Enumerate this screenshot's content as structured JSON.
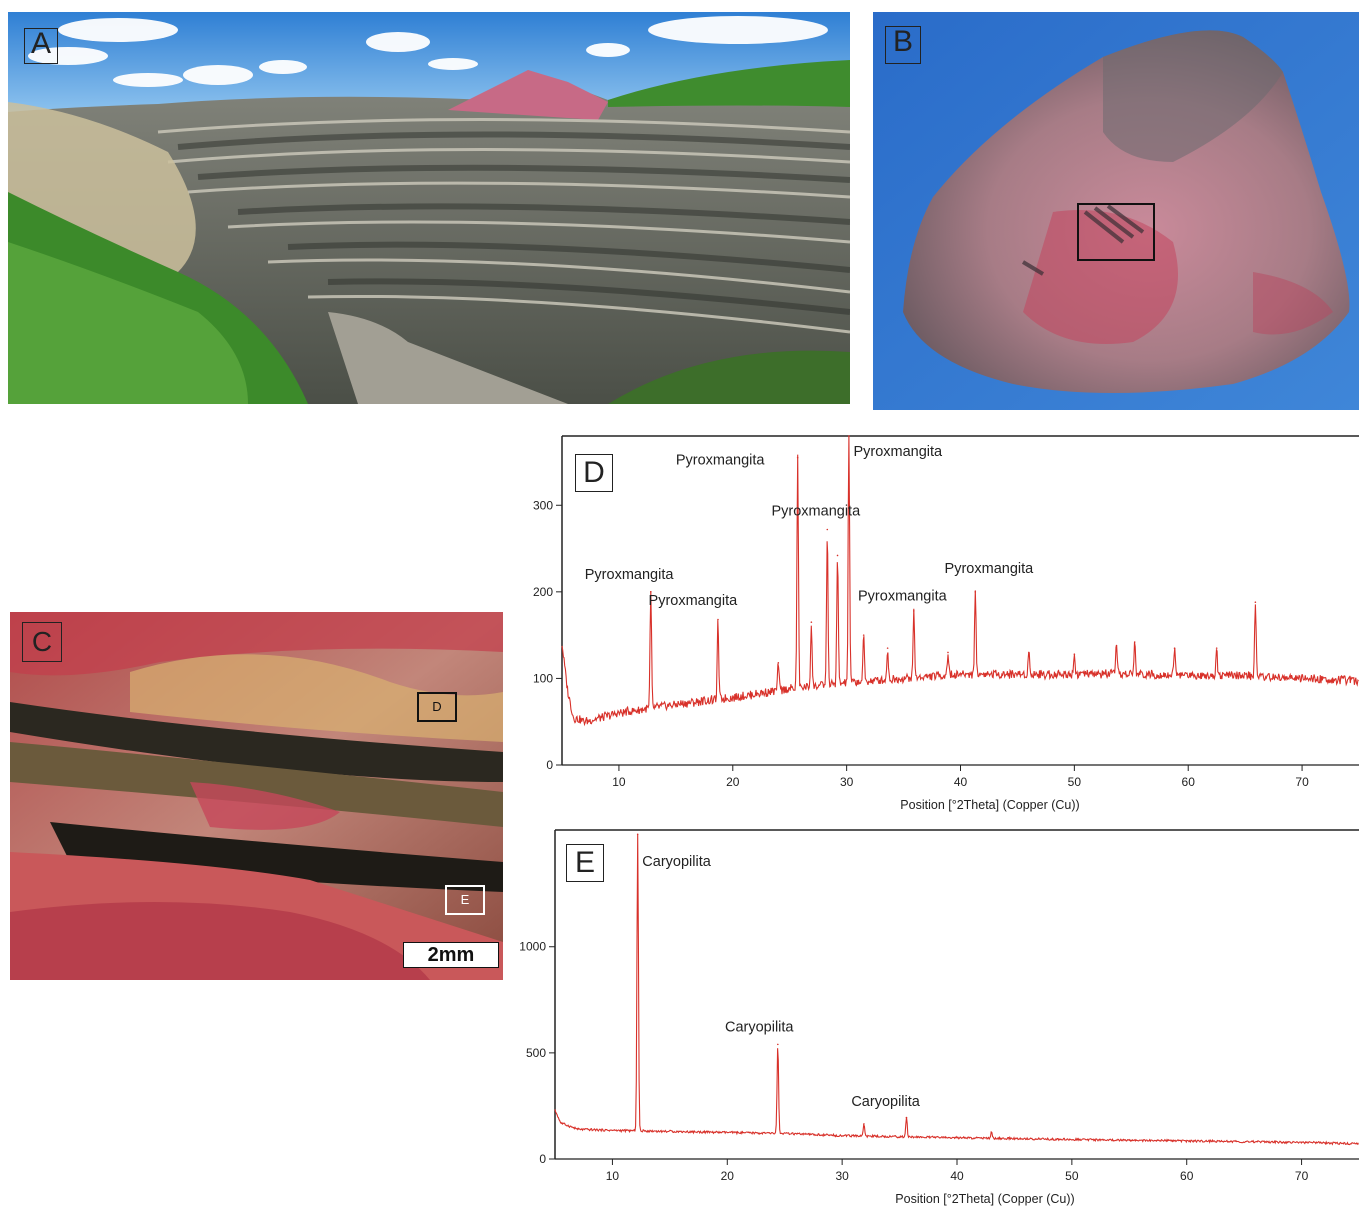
{
  "panels": {
    "a": {
      "label": "A"
    },
    "b": {
      "label": "B"
    },
    "c": {
      "label": "C",
      "scalebar": "2mm",
      "inset_d": "D",
      "inset_e": "E"
    }
  },
  "chart_data": [
    {
      "id": "D",
      "panel_label": "D",
      "type": "line",
      "title": "",
      "xlabel": "Position [°2Theta] (Copper (Cu))",
      "ylabel": "",
      "xlim": [
        5,
        75
      ],
      "ylim": [
        0,
        380
      ],
      "xticks": [
        10,
        20,
        30,
        40,
        50,
        60,
        70
      ],
      "yticks": [
        0,
        100,
        200,
        300
      ],
      "series_color": "#d8312a",
      "baseline": [
        [
          5,
          140
        ],
        [
          5.5,
          85
        ],
        [
          6,
          55
        ],
        [
          7,
          50
        ],
        [
          10,
          60
        ],
        [
          15,
          70
        ],
        [
          20,
          78
        ],
        [
          25,
          88
        ],
        [
          30,
          95
        ],
        [
          35,
          100
        ],
        [
          40,
          105
        ],
        [
          45,
          105
        ],
        [
          50,
          105
        ],
        [
          55,
          105
        ],
        [
          60,
          104
        ],
        [
          65,
          103
        ],
        [
          70,
          100
        ],
        [
          75,
          97
        ]
      ],
      "peaks": [
        {
          "x": 12.8,
          "y": 200
        },
        {
          "x": 18.7,
          "y": 168
        },
        {
          "x": 24.0,
          "y": 118
        },
        {
          "x": 25.7,
          "y": 355
        },
        {
          "x": 26.9,
          "y": 165
        },
        {
          "x": 28.3,
          "y": 272
        },
        {
          "x": 29.2,
          "y": 242
        },
        {
          "x": 30.2,
          "y": 380
        },
        {
          "x": 31.5,
          "y": 150
        },
        {
          "x": 33.6,
          "y": 135
        },
        {
          "x": 35.9,
          "y": 178
        },
        {
          "x": 38.9,
          "y": 130
        },
        {
          "x": 41.3,
          "y": 200
        },
        {
          "x": 46.0,
          "y": 130
        },
        {
          "x": 50.0,
          "y": 128
        },
        {
          "x": 53.7,
          "y": 138
        },
        {
          "x": 55.3,
          "y": 142
        },
        {
          "x": 58.8,
          "y": 135
        },
        {
          "x": 62.5,
          "y": 135
        },
        {
          "x": 65.9,
          "y": 188
        }
      ],
      "annotations": [
        {
          "text": "Pyroxmangita",
          "x": 7.0,
          "y": 215
        },
        {
          "text": "Pyroxmangita",
          "x": 12.6,
          "y": 185
        },
        {
          "text": "Pyroxmangita",
          "x": 15.0,
          "y": 347
        },
        {
          "text": "Pyroxmangita",
          "x": 23.4,
          "y": 288
        },
        {
          "text": "Pyroxmangita",
          "x": 30.6,
          "y": 357
        },
        {
          "text": "Pyroxmangita",
          "x": 31.0,
          "y": 190
        },
        {
          "text": "Pyroxmangita",
          "x": 38.6,
          "y": 222
        }
      ]
    },
    {
      "id": "E",
      "panel_label": "E",
      "type": "line",
      "title": "",
      "xlabel": "Position [°2Theta] (Copper (Cu))",
      "ylabel": "",
      "xlim": [
        5,
        75
      ],
      "ylim": [
        0,
        1550
      ],
      "xticks": [
        10,
        20,
        30,
        40,
        50,
        60,
        70
      ],
      "yticks": [
        0,
        500,
        1000
      ],
      "series_color": "#d8312a",
      "baseline": [
        [
          5,
          230
        ],
        [
          5.5,
          170
        ],
        [
          7,
          140
        ],
        [
          10,
          135
        ],
        [
          15,
          130
        ],
        [
          20,
          125
        ],
        [
          25,
          120
        ],
        [
          30,
          110
        ],
        [
          35,
          105
        ],
        [
          40,
          100
        ],
        [
          50,
          92
        ],
        [
          60,
          85
        ],
        [
          70,
          78
        ],
        [
          75,
          72
        ]
      ],
      "peaks": [
        {
          "x": 12.2,
          "y": 1530
        },
        {
          "x": 24.4,
          "y": 540
        },
        {
          "x": 31.9,
          "y": 165
        },
        {
          "x": 35.6,
          "y": 195
        },
        {
          "x": 43.0,
          "y": 125
        }
      ],
      "annotations": [
        {
          "text": "Caryopilita",
          "x": 12.6,
          "y": 1380
        },
        {
          "text": "Caryopilita",
          "x": 19.8,
          "y": 600
        },
        {
          "text": "Caryopilita",
          "x": 30.8,
          "y": 250
        }
      ]
    }
  ]
}
